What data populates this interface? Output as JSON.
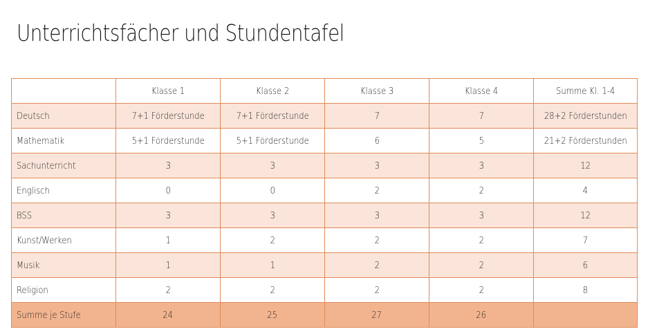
{
  "title": "Unterrichtsfächer und Stundentafel",
  "colors": {
    "border": "#e08a57",
    "shaded_row": "#fbe5da",
    "total_row": "#f2b48f"
  },
  "table": {
    "columns": [
      "",
      "Klasse 1",
      "Klasse 2",
      "Klasse 3",
      "Klasse 4",
      "Summe Kl. 1-4"
    ],
    "rows": [
      {
        "subject": "Deutsch",
        "cells": [
          "7+1 Förderstunde",
          "7+1 Förderstunde",
          "7",
          "7",
          "28+2 Förderstunden"
        ]
      },
      {
        "subject": "Mathematik",
        "cells": [
          "5+1 Förderstunde",
          "5+1 Förderstunde",
          "6",
          "5",
          "21+2 Förderstunden"
        ]
      },
      {
        "subject": "Sachunterricht",
        "cells": [
          "3",
          "3",
          "3",
          "3",
          "12"
        ]
      },
      {
        "subject": "Englisch",
        "cells": [
          "0",
          "0",
          "2",
          "2",
          "4"
        ]
      },
      {
        "subject": "BSS",
        "cells": [
          "3",
          "3",
          "3",
          "3",
          "12"
        ]
      },
      {
        "subject": "Kunst/Werken",
        "cells": [
          "1",
          "2",
          "2",
          "2",
          "7"
        ]
      },
      {
        "subject": "Musik",
        "cells": [
          "1",
          "1",
          "2",
          "2",
          "6"
        ]
      },
      {
        "subject": "Religion",
        "cells": [
          "2",
          "2",
          "2",
          "2",
          "8"
        ]
      }
    ],
    "total": {
      "label": "Summe je Stufe",
      "cells": [
        "24",
        "25",
        "27",
        "26",
        ""
      ]
    }
  }
}
